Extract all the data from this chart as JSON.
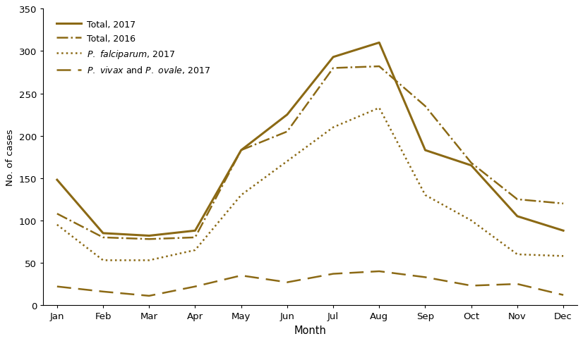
{
  "months": [
    "Jan",
    "Feb",
    "Mar",
    "Apr",
    "May",
    "Jun",
    "Jul",
    "Aug",
    "Sep",
    "Oct",
    "Nov",
    "Dec"
  ],
  "total_2017": [
    148,
    85,
    82,
    88,
    183,
    225,
    293,
    310,
    183,
    165,
    105,
    88
  ],
  "total_2016": [
    108,
    80,
    78,
    80,
    183,
    205,
    280,
    282,
    235,
    168,
    125,
    120
  ],
  "pf_2017": [
    95,
    53,
    53,
    65,
    130,
    170,
    210,
    233,
    130,
    100,
    60,
    58
  ],
  "pvpo_2017": [
    22,
    16,
    11,
    22,
    35,
    27,
    37,
    40,
    33,
    23,
    25,
    12
  ],
  "color": "#8B6914",
  "xlabel": "Month",
  "ylabel": "No. of cases",
  "ylim": [
    0,
    350
  ],
  "yticks": [
    0,
    50,
    100,
    150,
    200,
    250,
    300,
    350
  ],
  "lw": 1.8,
  "figsize": [
    8.26,
    4.85
  ],
  "dpi": 100
}
